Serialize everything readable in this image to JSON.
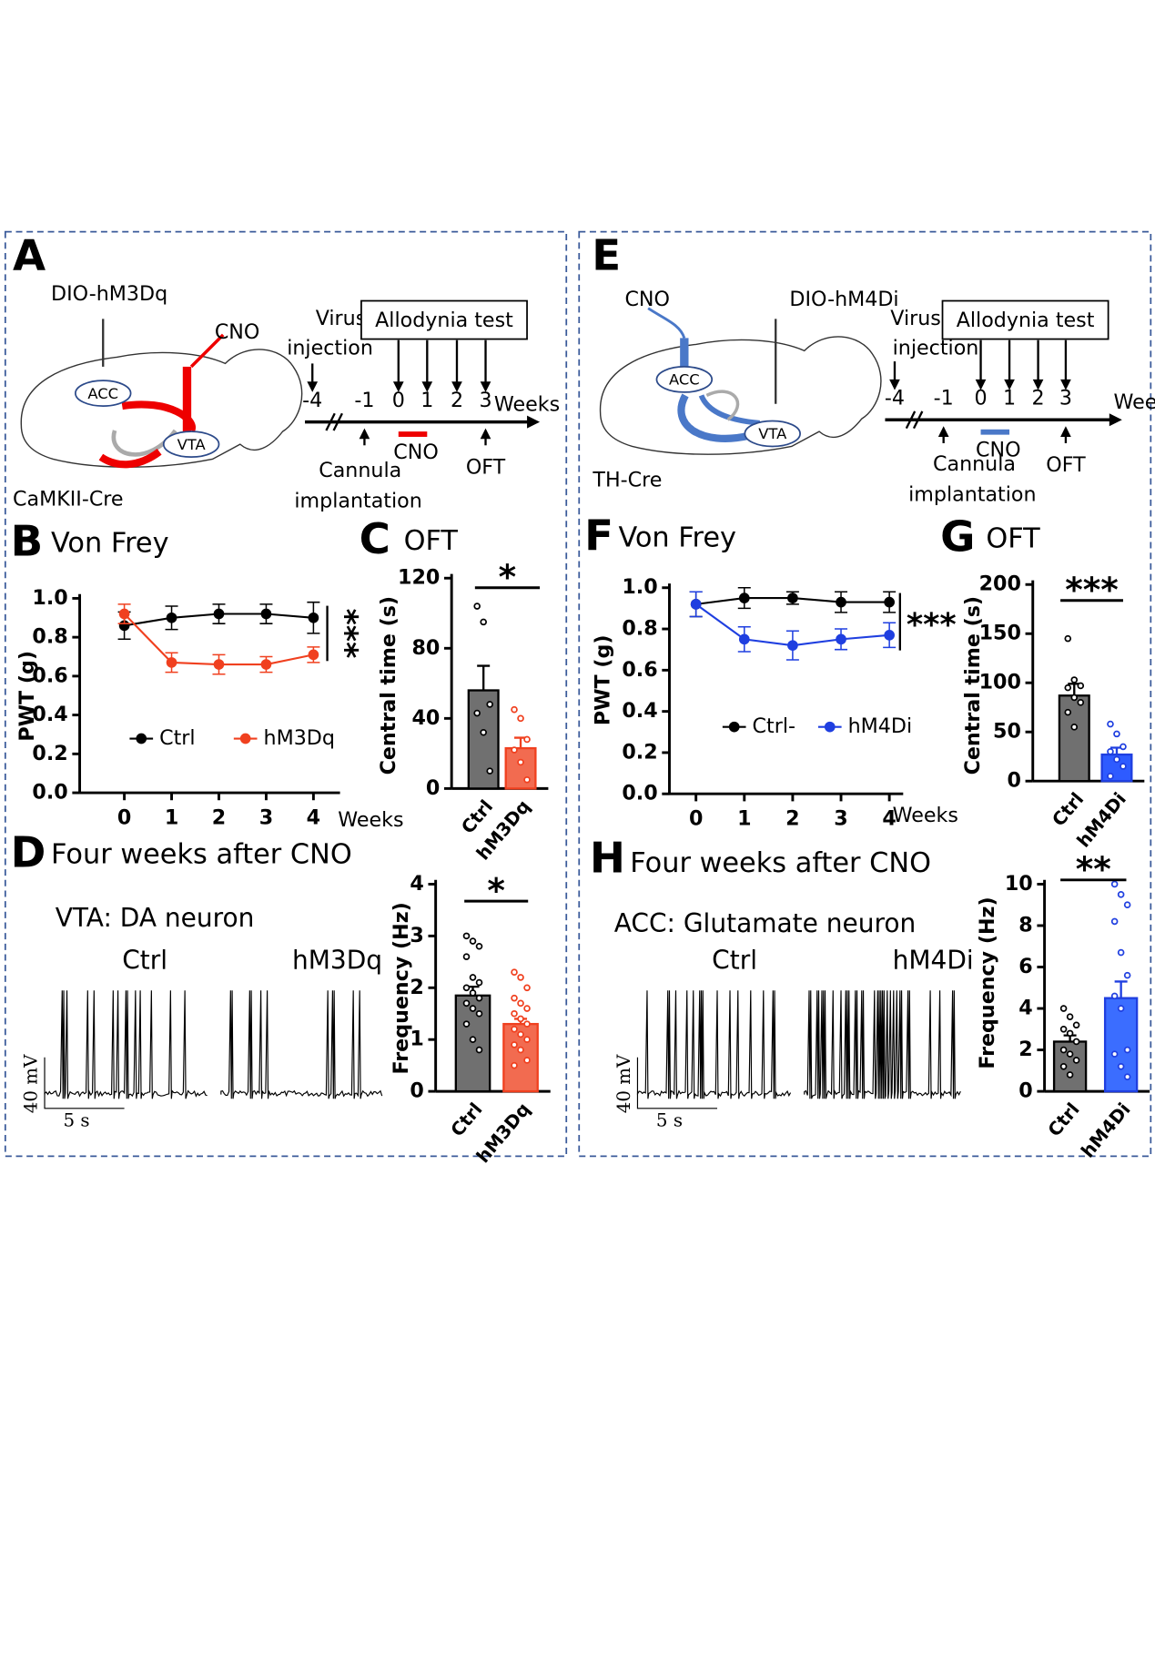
{
  "diagrams": [
    {
      "panel": "A",
      "construct": "DIO-hM3Dq",
      "drug": "CNO",
      "regions": [
        "ACC",
        "VTA"
      ],
      "mouse_line": "CaMKII-Cre",
      "injection": [
        "Virus",
        "injection"
      ],
      "test": "Allodynia test",
      "timeline": [
        "-4",
        "-1",
        "0",
        "1",
        "2",
        "3"
      ],
      "unit": "Weeks",
      "cannula": [
        "Cannula",
        "implantation"
      ],
      "cno_bar": "CNO",
      "oft": "OFT"
    },
    {
      "panel": "E",
      "construct": "DIO-hM4Di",
      "drug": "CNO",
      "regions": [
        "ACC",
        "VTA"
      ],
      "mouse_line": "TH-Cre",
      "injection": [
        "Virus",
        "injection"
      ],
      "test": "Allodynia test",
      "timeline": [
        "-4",
        "-1",
        "0",
        "1",
        "2",
        "3"
      ],
      "unit": "Weeks",
      "cannula": [
        "Cannula",
        "implantation"
      ],
      "cno_bar": "CNO",
      "oft": "OFT"
    }
  ],
  "recordings": [
    {
      "neuron": "VTA: DA neuron",
      "labels": [
        "Ctrl",
        "hM3Dq"
      ],
      "scale_v": "40 mV",
      "scale_t": "5 s"
    },
    {
      "neuron": "ACC: Glutamate neuron",
      "labels": [
        "Ctrl",
        "hM4Di"
      ],
      "scale_v": "40 mV",
      "scale_t": "5 s"
    }
  ],
  "chart_data": [
    {
      "panel": "B",
      "type": "line",
      "title": "Von Frey",
      "categories": [
        "0",
        "1",
        "2",
        "3",
        "4"
      ],
      "x_label": "Weeks",
      "y_label": "PWT (g)",
      "ylim": [
        0,
        1
      ],
      "yticks": [
        {
          "value": 0,
          "label": "0.0"
        },
        0.2,
        0.4,
        0.6,
        0.8,
        {
          "value": 1,
          "label": "1.0"
        }
      ],
      "significance": "***",
      "series": [
        {
          "name": "Ctrl",
          "color": "#000000",
          "values": [
            0.86,
            0.9,
            0.92,
            0.92,
            0.9
          ],
          "errors": [
            0.07,
            0.06,
            0.05,
            0.05,
            0.08
          ]
        },
        {
          "name": "hM3Dq",
          "color": "#f0401f",
          "values": [
            0.92,
            0.67,
            0.66,
            0.66,
            0.71
          ],
          "errors": [
            0.05,
            0.05,
            0.05,
            0.04,
            0.04
          ]
        }
      ]
    },
    {
      "panel": "C",
      "type": "bar",
      "title": "OFT",
      "categories": [
        "Ctrl",
        "hM3Dq"
      ],
      "values": [
        56,
        23
      ],
      "errors": [
        14,
        6
      ],
      "colors": [
        "#707070",
        "#f26b50"
      ],
      "point_colors": [
        "#000000",
        "#f0401f"
      ],
      "points": [
        [
          104,
          95,
          48,
          43,
          32,
          10
        ],
        [
          45,
          40,
          28,
          22,
          15,
          5
        ]
      ],
      "y_label": "Central time (s)",
      "ylim": [
        0,
        120
      ],
      "yticks": [
        0,
        40,
        80,
        120
      ],
      "significance": "*"
    },
    {
      "panel": "D",
      "type": "bar",
      "title": "Four weeks after CNO",
      "categories": [
        "Ctrl",
        "hM3Dq"
      ],
      "values": [
        1.85,
        1.3
      ],
      "errors": [
        0.17,
        0.1
      ],
      "colors": [
        "#707070",
        "#f26b50"
      ],
      "point_colors": [
        "#000000",
        "#f0401f"
      ],
      "points": [
        [
          3.0,
          2.9,
          2.8,
          2.6,
          2.2,
          2.1,
          2.0,
          1.9,
          1.8,
          1.7,
          1.6,
          1.5,
          1.3,
          1.0,
          0.8
        ],
        [
          2.3,
          2.2,
          2.0,
          1.8,
          1.7,
          1.6,
          1.5,
          1.4,
          1.3,
          1.2,
          1.1,
          1.0,
          0.9,
          0.8,
          0.6,
          0.5
        ]
      ],
      "y_label": "Frequency (Hz)",
      "ylim": [
        0,
        4
      ],
      "yticks": [
        0,
        1,
        2,
        3,
        4
      ],
      "significance": "*"
    },
    {
      "panel": "F",
      "type": "line",
      "title": "Von Frey",
      "categories": [
        "0",
        "1",
        "2",
        "3",
        "4"
      ],
      "x_label": "Weeks",
      "y_label": "PWT (g)",
      "ylim": [
        0,
        1
      ],
      "yticks": [
        {
          "value": 0,
          "label": "0.0"
        },
        0.2,
        0.4,
        0.6,
        0.8,
        {
          "value": 1,
          "label": "1.0"
        }
      ],
      "significance": "***",
      "series": [
        {
          "name": "Ctrl-",
          "color": "#000000",
          "values": [
            0.92,
            0.95,
            0.95,
            0.93,
            0.93
          ],
          "errors": [
            0.06,
            0.05,
            0.03,
            0.05,
            0.05
          ]
        },
        {
          "name": "hM4Di",
          "color": "#1f3fe0",
          "values": [
            0.92,
            0.75,
            0.72,
            0.75,
            0.77
          ],
          "errors": [
            0.06,
            0.06,
            0.07,
            0.05,
            0.06
          ]
        }
      ]
    },
    {
      "panel": "G",
      "type": "bar",
      "title": "OFT",
      "categories": [
        "Ctrl",
        "hM4Di"
      ],
      "values": [
        87,
        27
      ],
      "errors": [
        12,
        7
      ],
      "colors": [
        "#707070",
        "#2e5bff"
      ],
      "point_colors": [
        "#000000",
        "#1f3fe0"
      ],
      "points": [
        [
          145,
          103,
          97,
          95,
          85,
          80,
          70,
          55
        ],
        [
          58,
          48,
          35,
          30,
          22,
          15,
          5
        ]
      ],
      "y_label": "Central time (s)",
      "ylim": [
        0,
        200
      ],
      "yticks": [
        0,
        50,
        100,
        150,
        200
      ],
      "significance": "***"
    },
    {
      "panel": "H",
      "type": "bar",
      "title": "Four weeks after CNO",
      "categories": [
        "Ctrl",
        "hM4Di"
      ],
      "values": [
        2.4,
        4.5
      ],
      "errors": [
        0.3,
        0.8
      ],
      "colors": [
        "#707070",
        "#3b6dff"
      ],
      "point_colors": [
        "#000000",
        "#1f3fe0"
      ],
      "points": [
        [
          4.0,
          3.6,
          3.2,
          3.0,
          2.8,
          2.4,
          2.0,
          1.8,
          1.5,
          1.2,
          0.8
        ],
        [
          10.0,
          9.5,
          9.0,
          8.2,
          6.7,
          5.6,
          4.6,
          4.0,
          2.0,
          1.8,
          1.2,
          0.7
        ]
      ],
      "y_label": "Frequency (Hz)",
      "ylim": [
        0,
        10
      ],
      "yticks": [
        0,
        2,
        4,
        6,
        8,
        10
      ],
      "significance": "**"
    }
  ]
}
